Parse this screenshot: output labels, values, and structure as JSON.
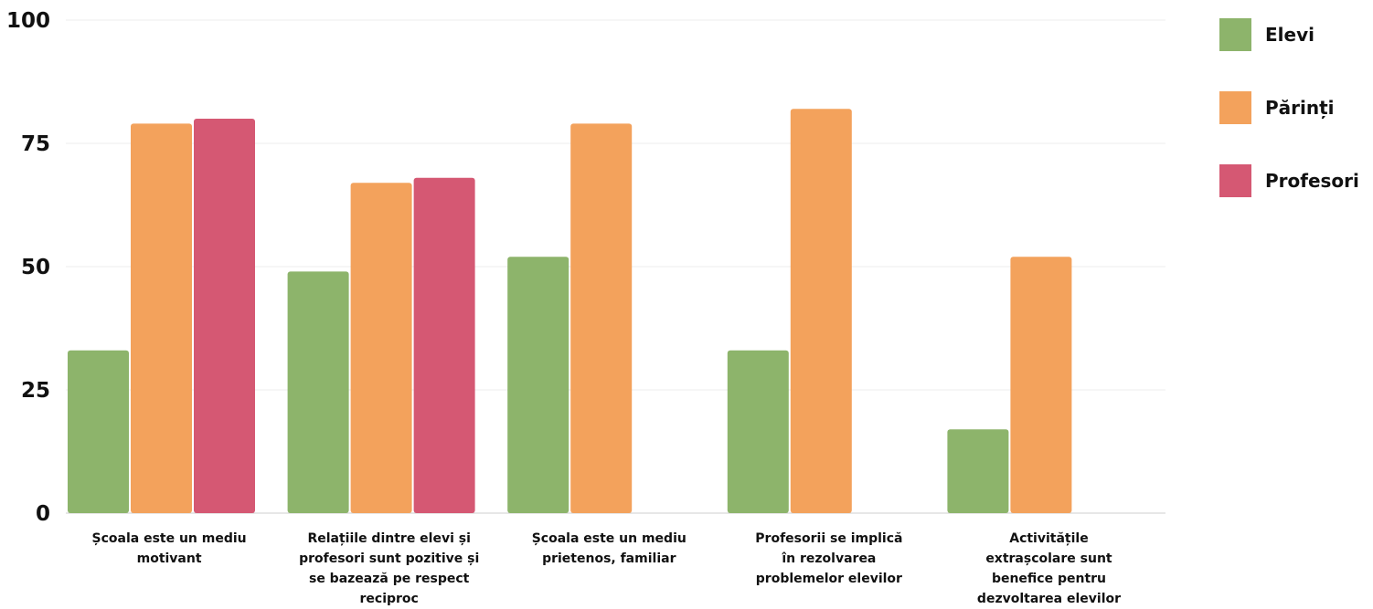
{
  "chart_data": {
    "type": "bar",
    "ylim": [
      0,
      100
    ],
    "yticks": [
      0,
      25,
      50,
      75,
      100
    ],
    "grid": true,
    "legend_position": "right",
    "categories": [
      [
        "Școala este un mediu",
        "motivant"
      ],
      [
        "Relațiile dintre elevi și",
        "profesori sunt pozitive și",
        "se bazează pe respect",
        "reciproc"
      ],
      [
        "Școala este un mediu",
        "prietenos, familiar"
      ],
      [
        "Profesorii se implică",
        "în rezolvarea",
        "problemelor elevilor"
      ],
      [
        "Activitățile",
        "extrașcolare sunt",
        "benefice pentru",
        "dezvoltarea elevilor"
      ]
    ],
    "series": [
      {
        "name": "Elevi",
        "color": "#8db46b",
        "values": [
          33,
          49,
          52,
          33,
          17
        ]
      },
      {
        "name": "Părinți",
        "color": "#f3a25c",
        "values": [
          79,
          67,
          79,
          82,
          52
        ]
      },
      {
        "name": "Profesori",
        "color": "#d55873",
        "values": [
          80,
          68,
          null,
          null,
          null
        ]
      }
    ]
  }
}
